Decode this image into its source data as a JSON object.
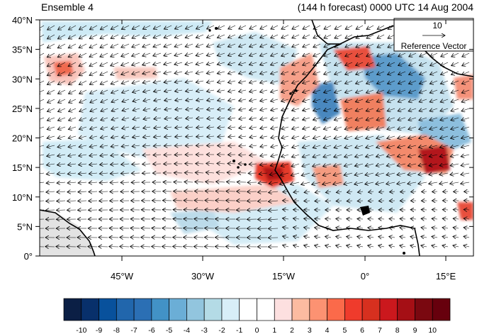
{
  "header": {
    "left_title": "Ensemble 4",
    "right_title": "(144 h forecast) 0000 UTC 14 Aug 2004"
  },
  "map": {
    "lat_labels": [
      "40°N",
      "35°N",
      "30°N",
      "25°N",
      "20°N",
      "15°N",
      "10°N",
      "5°N",
      "0°"
    ],
    "lon_labels": [
      "45°W",
      "30°W",
      "15°W",
      "0°",
      "15°E"
    ],
    "land_color": "#cccccc",
    "coast_color": "#000000",
    "vector_color": "#000000"
  },
  "reference_vector": {
    "magnitude": "10",
    "label": "Reference Vector"
  },
  "colorbar": {
    "labels": [
      "-10",
      "-9",
      "-8",
      "-7",
      "-6",
      "-5",
      "-4",
      "-3",
      "-2",
      "-1",
      "0",
      "1",
      "2",
      "3",
      "4",
      "5",
      "6",
      "7",
      "8",
      "9",
      "10"
    ],
    "colors": [
      "#0b1f45",
      "#08306b",
      "#08519c",
      "#2166ac",
      "#2b6fb4",
      "#4292c6",
      "#6baed6",
      "#92c5de",
      "#b4dbe6",
      "#d8eef8",
      "#ffffff",
      "#ffffff",
      "#fde0e0",
      "#fcbba1",
      "#fc9272",
      "#fb6a4a",
      "#ef3b2c",
      "#d7301f",
      "#cb181d",
      "#a50f15",
      "#7a0810",
      "#67000d"
    ]
  }
}
